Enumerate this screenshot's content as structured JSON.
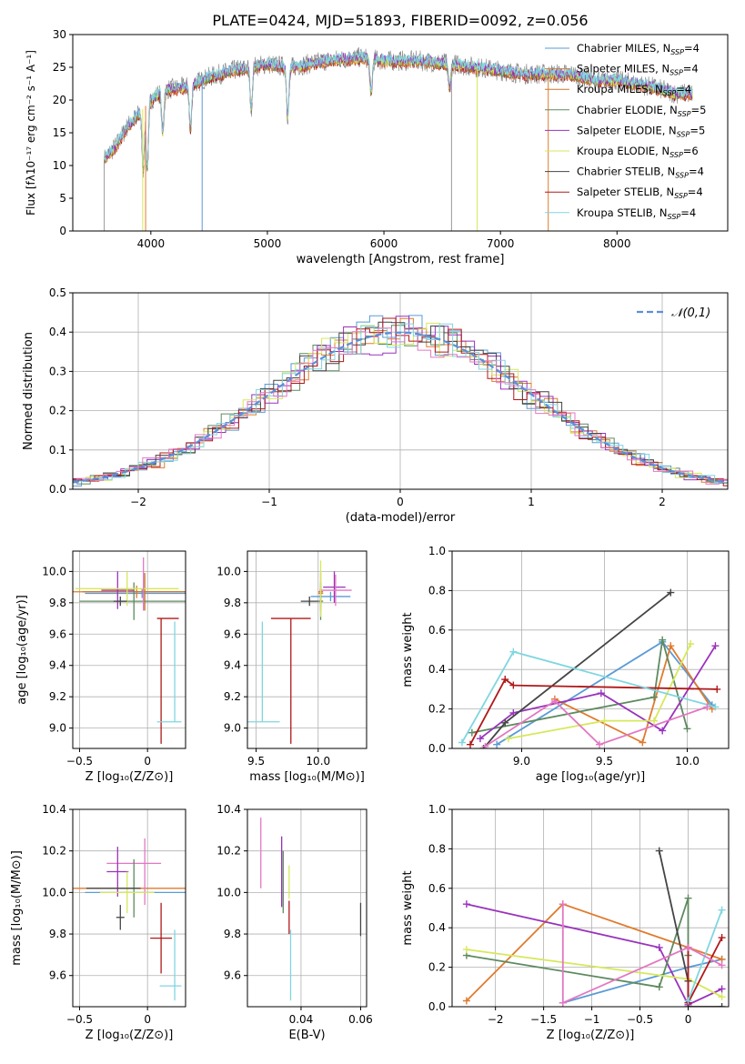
{
  "title": "PLATE=0424, MJD=51893, FIBERID=0092, z=0.056",
  "colors": {
    "chabrier_miles": "#5b9bd5",
    "salpeter_miles": "#e07b2e",
    "kroupa_miles": "#e07b2e",
    "chabrier_elodie": "#5e8a60",
    "salpeter_elodie": "#9933bb",
    "kroupa_elodie": "#d6e85a",
    "chabrier_stelib": "#444444",
    "salpeter_stelib": "#b01818",
    "kroupa_stelib": "#7fd6e0",
    "pink": "#e377c2",
    "data": "#808080",
    "normal": "#5b8fd9"
  },
  "legend": [
    {
      "text": "Chabrier MILES, N",
      "sub": "SSP",
      "eq": "=4",
      "color": "#5b9bd5"
    },
    {
      "text": "Salpeter MILES, N",
      "sub": "SSP",
      "eq": "=4",
      "color": "#e07b2e"
    },
    {
      "text": "Kroupa MILES, N",
      "sub": "SSP",
      "eq": "=4",
      "color": "#c9772b"
    },
    {
      "text": "Chabrier ELODIE, N",
      "sub": "SSP",
      "eq": "=5",
      "color": "#5e8a60"
    },
    {
      "text": "Salpeter ELODIE, N",
      "sub": "SSP",
      "eq": "=5",
      "color": "#9933bb"
    },
    {
      "text": "Kroupa ELODIE, N",
      "sub": "SSP",
      "eq": "=6",
      "color": "#d6e85a"
    },
    {
      "text": "Chabrier STELIB, N",
      "sub": "SSP",
      "eq": "=4",
      "color": "#444444"
    },
    {
      "text": "Salpeter STELIB, N",
      "sub": "SSP",
      "eq": "=4",
      "color": "#b01818"
    },
    {
      "text": "Kroupa STELIB, N",
      "sub": "SSP",
      "eq": "=4",
      "color": "#7fd6e0"
    }
  ],
  "chart_data": [
    {
      "type": "line",
      "id": "spectrum",
      "xlabel": "wavelength [Angstrom, rest frame]",
      "ylabel": "Flux [fλ10⁻¹⁷ erg cm⁻² s⁻¹ A⁻¹]",
      "xlim": [
        3330,
        8950
      ],
      "ylim": [
        0,
        30
      ],
      "xticks": [
        4000,
        5000,
        6000,
        7000,
        8000
      ],
      "yticks": [
        0,
        5,
        10,
        15,
        20,
        25,
        30
      ],
      "continuum": [
        [
          3600,
          11
        ],
        [
          3700,
          13
        ],
        [
          3800,
          16
        ],
        [
          3900,
          18
        ],
        [
          4000,
          20
        ],
        [
          4100,
          21.5
        ],
        [
          4300,
          22
        ],
        [
          4500,
          23.5
        ],
        [
          4700,
          24.5
        ],
        [
          5000,
          25.5
        ],
        [
          5200,
          25
        ],
        [
          5500,
          26
        ],
        [
          5800,
          26.5
        ],
        [
          6000,
          26
        ],
        [
          6300,
          26
        ],
        [
          6600,
          25.5
        ],
        [
          6800,
          25
        ],
        [
          7000,
          24.5
        ],
        [
          7200,
          24
        ],
        [
          7400,
          24
        ],
        [
          7600,
          24
        ],
        [
          7800,
          23
        ],
        [
          8000,
          23
        ],
        [
          8300,
          22
        ],
        [
          8500,
          21
        ],
        [
          8700,
          21
        ]
      ]
    },
    {
      "type": "bar",
      "id": "residuals",
      "xlabel": "(data-model)/error",
      "ylabel": "Normed distribution",
      "xlim": [
        -2.5,
        2.5
      ],
      "ylim": [
        0,
        0.5
      ],
      "xticks": [
        -2,
        -1,
        0,
        1,
        2
      ],
      "yticks": [
        0.0,
        0.1,
        0.2,
        0.3,
        0.4,
        0.5
      ],
      "legend_label": "𝒩(0,1)"
    },
    {
      "type": "scatter",
      "id": "z_age",
      "xlabel": "Z [log₁₀(Z/Z⊙)]",
      "ylabel": "age  [log₁₀(age/yr)]",
      "xlim": [
        -0.55,
        0.28
      ],
      "ylim": [
        8.87,
        10.13
      ],
      "xticks": [
        -0.5,
        0.0
      ],
      "yticks": [
        9.0,
        9.2,
        9.4,
        9.6,
        9.8,
        10.0
      ],
      "points": [
        {
          "x": -0.04,
          "y": 9.86,
          "xerr": 0.42,
          "yerr": 0.03,
          "color": "#5b9bd5"
        },
        {
          "x": -0.08,
          "y": 9.87,
          "xerr": 0.47,
          "yerr": 0.04,
          "color": "#e07b2e"
        },
        {
          "x": -0.02,
          "y": 9.87,
          "xerr": 0.46,
          "yerr": 0.12,
          "color": "#c9772b"
        },
        {
          "x": -0.1,
          "y": 9.81,
          "xerr": 0.4,
          "yerr": 0.12,
          "color": "#5e8a60"
        },
        {
          "x": -0.22,
          "y": 9.88,
          "xerr": 0.12,
          "yerr": 0.12,
          "color": "#9933bb"
        },
        {
          "x": -0.15,
          "y": 9.89,
          "xerr": 0.38,
          "yerr": 0.11,
          "color": "#d6e85a"
        },
        {
          "x": -0.2,
          "y": 9.81,
          "xerr": 0.05,
          "yerr": 0.03,
          "color": "#444444"
        },
        {
          "x": 0.1,
          "y": 9.3,
          "xerr": 0.0,
          "yerr": 0.4,
          "color": "#b01818"
        },
        {
          "x": 0.15,
          "y": 9.7,
          "xerr": 0.08,
          "yerr": 0.0,
          "color": "#b01818"
        },
        {
          "x": 0.2,
          "y": 9.36,
          "xerr": 0.0,
          "yerr": 0.32,
          "color": "#7fd6e0"
        },
        {
          "x": 0.16,
          "y": 9.04,
          "xerr": 0.09,
          "yerr": 0.0,
          "color": "#7fd6e0"
        },
        {
          "x": -0.03,
          "y": 9.92,
          "xerr": 0.0,
          "yerr": 0.17,
          "color": "#e377c2"
        }
      ]
    },
    {
      "type": "scatter",
      "id": "mass_age",
      "xlabel": "mass [log₁₀(M/M⊙)]",
      "ylabel": "",
      "xlim": [
        9.43,
        10.39
      ],
      "ylim": [
        8.87,
        10.13
      ],
      "xticks": [
        9.5,
        10.0
      ],
      "yticks": [
        9.0,
        9.2,
        9.4,
        9.6,
        9.8,
        10.0
      ],
      "points": [
        {
          "x": 10.1,
          "y": 9.84,
          "xerr": 0.16,
          "yerr": 0.03,
          "color": "#5b9bd5"
        },
        {
          "x": 10.02,
          "y": 9.86,
          "xerr": 0.02,
          "yerr": 0.04,
          "color": "#e07b2e"
        },
        {
          "x": 10.02,
          "y": 9.87,
          "xerr": 0.02,
          "yerr": 0.12,
          "color": "#c9772b"
        },
        {
          "x": 10.02,
          "y": 9.81,
          "xerr": 0.02,
          "yerr": 0.12,
          "color": "#5e8a60"
        },
        {
          "x": 10.13,
          "y": 9.9,
          "xerr": 0.09,
          "yerr": 0.1,
          "color": "#9933bb"
        },
        {
          "x": 10.14,
          "y": 9.88,
          "xerr": 0.13,
          "yerr": 0.1,
          "color": "#e377c2"
        },
        {
          "x": 10.02,
          "y": 9.89,
          "xerr": 0.0,
          "yerr": 0.18,
          "color": "#d6e85a"
        },
        {
          "x": 9.93,
          "y": 9.81,
          "xerr": 0.07,
          "yerr": 0.03,
          "color": "#444444"
        },
        {
          "x": 9.78,
          "y": 9.3,
          "xerr": 0.0,
          "yerr": 0.4,
          "color": "#b01818"
        },
        {
          "x": 9.78,
          "y": 9.7,
          "xerr": 0.16,
          "yerr": 0.0,
          "color": "#b01818"
        },
        {
          "x": 9.55,
          "y": 9.36,
          "xerr": 0.0,
          "yerr": 0.32,
          "color": "#7fd6e0"
        },
        {
          "x": 9.55,
          "y": 9.04,
          "xerr": 0.14,
          "yerr": 0.0,
          "color": "#7fd6e0"
        }
      ]
    },
    {
      "type": "line",
      "id": "age_weight",
      "xlabel": "age  [log₁₀(age/yr)]",
      "ylabel": "mass weight",
      "xlim": [
        8.58,
        10.25
      ],
      "ylim": [
        0,
        1.0
      ],
      "xticks": [
        9.0,
        9.5,
        10.0
      ],
      "yticks": [
        0.0,
        0.2,
        0.4,
        0.6,
        0.8,
        1.0
      ],
      "series": [
        {
          "color": "#5b9bd5",
          "x": [
            8.85,
            9.85,
            10.15
          ],
          "y": [
            0.02,
            0.54,
            0.22
          ]
        },
        {
          "color": "#e07b2e",
          "x": [
            9.2,
            9.73,
            9.9,
            10.15
          ],
          "y": [
            0.25,
            0.03,
            0.52,
            0.2
          ]
        },
        {
          "color": "#5e8a60",
          "x": [
            8.7,
            9.8,
            9.85,
            10.0
          ],
          "y": [
            0.08,
            0.26,
            0.55,
            0.1
          ]
        },
        {
          "color": "#9933bb",
          "x": [
            8.75,
            8.95,
            9.48,
            9.85,
            10.17
          ],
          "y": [
            0.05,
            0.18,
            0.28,
            0.09,
            0.52
          ]
        },
        {
          "color": "#d6e85a",
          "x": [
            8.92,
            9.5,
            9.8,
            10.02
          ],
          "y": [
            0.05,
            0.14,
            0.14,
            0.53
          ]
        },
        {
          "color": "#444444",
          "x": [
            8.77,
            8.9,
            9.9
          ],
          "y": [
            0.0,
            0.13,
            0.79
          ]
        },
        {
          "color": "#b01818",
          "x": [
            8.69,
            8.9,
            8.95,
            10.18
          ],
          "y": [
            0.02,
            0.35,
            0.32,
            0.3
          ]
        },
        {
          "color": "#7fd6e0",
          "x": [
            8.64,
            8.95,
            10.17
          ],
          "y": [
            0.03,
            0.49,
            0.21
          ]
        },
        {
          "color": "#e377c2",
          "x": [
            8.78,
            9.2,
            9.47,
            10.12
          ],
          "y": [
            0.01,
            0.24,
            0.02,
            0.21
          ]
        }
      ]
    },
    {
      "type": "scatter",
      "id": "z_mass",
      "xlabel": "Z [log₁₀(Z/Z⊙)]",
      "ylabel": "mass [log₁₀(M/M⊙)]",
      "xlim": [
        -0.55,
        0.28
      ],
      "ylim": [
        9.45,
        10.4
      ],
      "xticks": [
        -0.5,
        0.0
      ],
      "yticks": [
        9.6,
        9.8,
        10.0,
        10.2,
        10.4
      ],
      "points": [
        {
          "x": -0.04,
          "y": 10.0,
          "xerr": 0.42,
          "yerr": 0.0,
          "color": "#5b9bd5"
        },
        {
          "x": -0.08,
          "y": 10.02,
          "xerr": 0.47,
          "yerr": 0.0,
          "color": "#e07b2e"
        },
        {
          "x": -0.02,
          "y": 10.1,
          "xerr": 0.0,
          "yerr": 0.16,
          "color": "#e377c2"
        },
        {
          "x": -0.1,
          "y": 10.14,
          "xerr": 0.2,
          "yerr": 0.0,
          "color": "#e377c2"
        },
        {
          "x": -0.1,
          "y": 10.02,
          "xerr": 0.0,
          "yerr": 0.14,
          "color": "#5e8a60"
        },
        {
          "x": -0.22,
          "y": 10.1,
          "xerr": 0.08,
          "yerr": 0.12,
          "color": "#9933bb"
        },
        {
          "x": -0.15,
          "y": 10.0,
          "xerr": 0.2,
          "yerr": 0.1,
          "color": "#d6e85a"
        },
        {
          "x": -0.25,
          "y": 10.02,
          "xerr": 0.2,
          "yerr": 0.0,
          "color": "#444444"
        },
        {
          "x": -0.2,
          "y": 9.88,
          "xerr": 0.03,
          "yerr": 0.06,
          "color": "#444444"
        },
        {
          "x": 0.1,
          "y": 9.78,
          "xerr": 0.08,
          "yerr": 0.17,
          "color": "#b01818"
        },
        {
          "x": 0.17,
          "y": 9.55,
          "xerr": 0.08,
          "yerr": 0.0,
          "color": "#7fd6e0"
        },
        {
          "x": 0.2,
          "y": 9.65,
          "xerr": 0.0,
          "yerr": 0.17,
          "color": "#7fd6e0"
        }
      ]
    },
    {
      "type": "scatter",
      "id": "ebv_mass",
      "xlabel": "E(B-V)",
      "ylabel": "",
      "xlim": [
        0.022,
        0.062
      ],
      "ylim": [
        9.45,
        10.4
      ],
      "xticks": [
        0.04,
        0.06
      ],
      "yticks": [
        9.6,
        9.8,
        10.0,
        10.2,
        10.4
      ],
      "points": [
        {
          "x": 0.0265,
          "y": 10.19,
          "xerr": 0.0,
          "yerr": 0.17,
          "color": "#e377c2"
        },
        {
          "x": 0.0335,
          "y": 10.1,
          "xerr": 0.0,
          "yerr": 0.17,
          "color": "#9933bb"
        },
        {
          "x": 0.034,
          "y": 10.05,
          "xerr": 0.0,
          "yerr": 0.15,
          "color": "#5e8a60"
        },
        {
          "x": 0.036,
          "y": 10.05,
          "xerr": 0.0,
          "yerr": 0.08,
          "color": "#d6e85a"
        },
        {
          "x": 0.036,
          "y": 9.88,
          "xerr": 0.0,
          "yerr": 0.08,
          "color": "#b01818"
        },
        {
          "x": 0.0365,
          "y": 9.65,
          "xerr": 0.0,
          "yerr": 0.17,
          "color": "#7fd6e0"
        },
        {
          "x": 0.06,
          "y": 9.87,
          "xerr": 0.0,
          "yerr": 0.08,
          "color": "#444444"
        }
      ]
    },
    {
      "type": "line",
      "id": "z_weight",
      "xlabel": "Z [log₁₀(Z/Z⊙)]",
      "ylabel": "mass weight",
      "xlim": [
        -2.45,
        0.42
      ],
      "ylim": [
        0,
        1.0
      ],
      "xticks": [
        -2.0,
        -1.5,
        -1.0,
        -0.5,
        0.0
      ],
      "yticks": [
        0.0,
        0.2,
        0.4,
        0.6,
        0.8,
        1.0
      ],
      "series": [
        {
          "color": "#5b9bd5",
          "x": [
            -1.3,
            0.0,
            0.35
          ],
          "y": [
            0.02,
            0.2,
            0.24
          ]
        },
        {
          "color": "#e07b2e",
          "x": [
            -2.3,
            -1.3,
            0.0,
            0.35
          ],
          "y": [
            0.03,
            0.52,
            0.3,
            0.24
          ]
        },
        {
          "color": "#9933bb",
          "x": [
            -2.3,
            -0.3,
            0.0,
            0.35
          ],
          "y": [
            0.52,
            0.3,
            0.01,
            0.09
          ]
        },
        {
          "color": "#5e8a60",
          "x": [
            -2.3,
            -0.3,
            0.0,
            0.0
          ],
          "y": [
            0.26,
            0.1,
            0.55,
            0.26
          ]
        },
        {
          "color": "#d6e85a",
          "x": [
            -2.3,
            0.0,
            0.35
          ],
          "y": [
            0.29,
            0.14,
            0.05
          ]
        },
        {
          "color": "#444444",
          "x": [
            -0.3,
            0.0,
            0.0,
            0.35
          ],
          "y": [
            0.79,
            0.13,
            0.0,
            0.0
          ]
        },
        {
          "color": "#b01818",
          "x": [
            0.0,
            0.0,
            0.35
          ],
          "y": [
            0.3,
            0.02,
            0.35
          ]
        },
        {
          "color": "#7fd6e0",
          "x": [
            0.0,
            0.35
          ],
          "y": [
            0.03,
            0.49
          ]
        },
        {
          "color": "#e377c2",
          "x": [
            -1.3,
            -1.3,
            0.0,
            0.35
          ],
          "y": [
            0.52,
            0.02,
            0.3,
            0.21
          ]
        }
      ]
    }
  ]
}
